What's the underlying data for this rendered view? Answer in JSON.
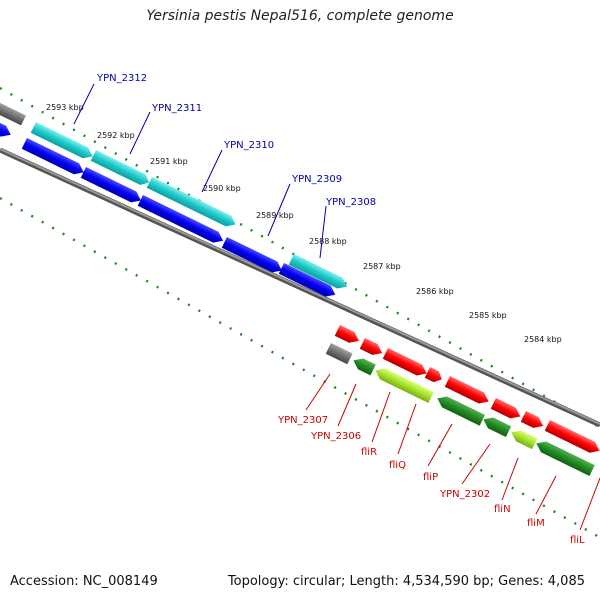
{
  "title": "Yersinia pestis Nepal516, complete genome",
  "footer": {
    "accession": "Accession: NC_008149",
    "summary": "Topology: circular; Length: 4,534,590 bp; Genes: 4,085"
  },
  "colors": {
    "backbone": "#808080",
    "reverse_strand_top": "#00cccc",
    "reverse_strand_bottom": "#0000ff",
    "forward_strand_top": "#ff0000",
    "forward_strand_bottom": "#228b22",
    "highlight_green": "#a6e22e",
    "gray_gene": "#707070",
    "label_blue": "#0000aa",
    "label_red": "#cc0000",
    "tick_green": "#1a8a1a"
  },
  "scale_labels": [
    "2593 kbp",
    "2592 kbp",
    "2591 kbp",
    "2590 kbp",
    "2589 kbp",
    "2588 kbp",
    "2587 kbp",
    "2586 kbp",
    "2585 kbp",
    "2584 kbp"
  ],
  "upper_genes": [
    {
      "name": "YPN_2312"
    },
    {
      "name": "YPN_2311"
    },
    {
      "name": "YPN_2310"
    },
    {
      "name": "YPN_2309"
    },
    {
      "name": "YPN_2308"
    }
  ],
  "lower_genes": [
    {
      "name": "YPN_2307"
    },
    {
      "name": "YPN_2306"
    },
    {
      "name": "fliR"
    },
    {
      "name": "fliQ"
    },
    {
      "name": "fliP"
    },
    {
      "name": "YPN_2302"
    },
    {
      "name": "fliN"
    },
    {
      "name": "fliM"
    },
    {
      "name": "fliL"
    }
  ]
}
